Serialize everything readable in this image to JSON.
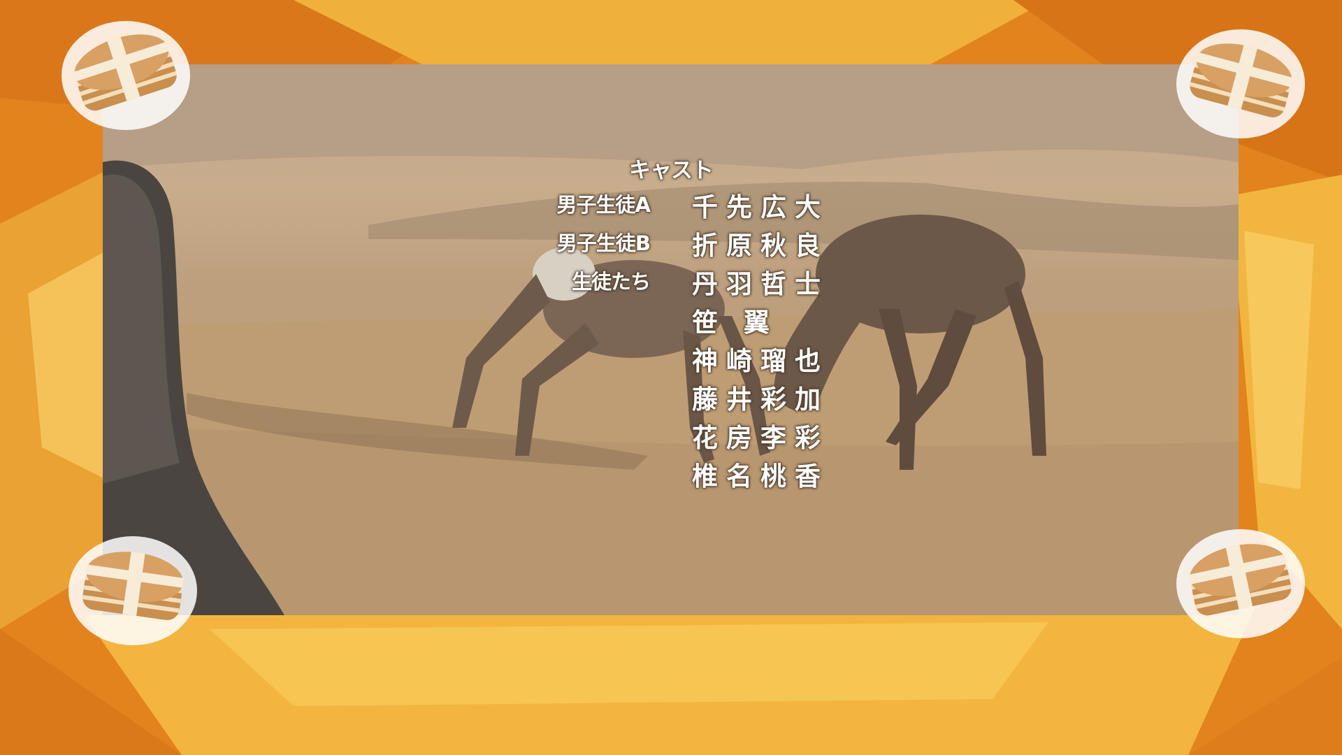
{
  "credits": {
    "heading": "キャスト",
    "roles": [
      "男子生徒A",
      "男子生徒B",
      "生徒たち"
    ],
    "actors": [
      "千先広大",
      "折原秋良",
      "丹羽哲士",
      "笹 翼",
      "神崎瑠也",
      "藤井彩加",
      "花房李彩",
      "椎名桃香"
    ]
  },
  "colors": {
    "frame_orange": "#e48a22",
    "frame_yellow": "#f2b540",
    "text": "#ffffff"
  },
  "decorations": {
    "corner_icon": "layered-cake-icon"
  }
}
